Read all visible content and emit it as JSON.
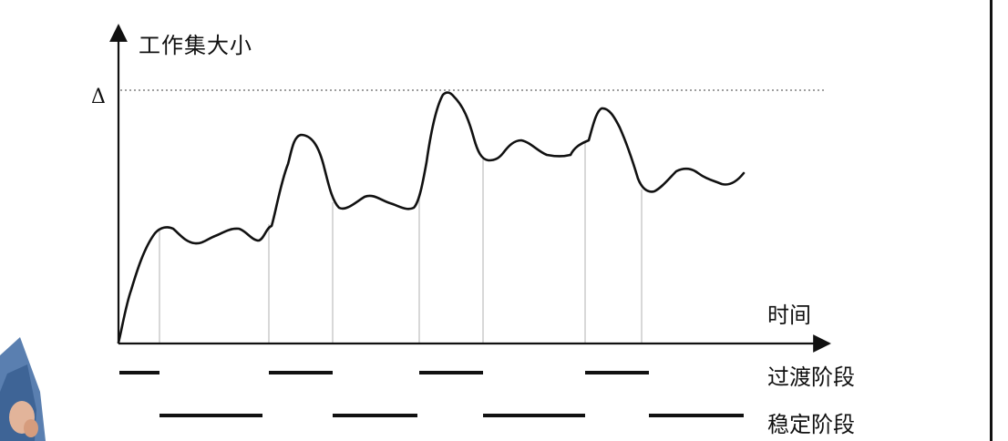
{
  "diagram": {
    "y_axis_label": "工作集大小",
    "peak_marker": "Δ",
    "x_axis_label": "时间",
    "legend": {
      "transition_label": "过渡阶段",
      "stable_label": "稳定阶段"
    },
    "colors": {
      "curve": "#111111",
      "axis": "#111111",
      "dotted_line": "#666666",
      "phase_separators": "#bbbbbb",
      "background": "#ffffff"
    },
    "phase_count": {
      "transition": 4,
      "stable": 4
    }
  }
}
